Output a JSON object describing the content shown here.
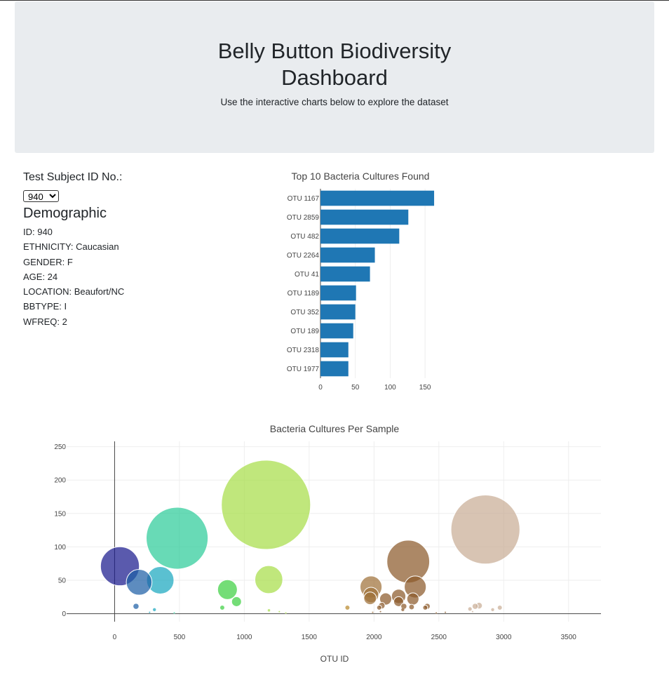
{
  "header": {
    "title": "Belly Button Biodiversity Dashboard",
    "subtitle": "Use the interactive charts below to explore the dataset"
  },
  "selector": {
    "label": "Test Subject ID No.:",
    "selected": "940"
  },
  "demographic": {
    "title": "Demographic",
    "lines": [
      "ID: 940",
      "ETHNICITY: Caucasian",
      "GENDER: F",
      "AGE: 24",
      "LOCATION: Beaufort/NC",
      "BBTYPE: I",
      "WFREQ: 2"
    ]
  },
  "chart_data": [
    {
      "type": "bar",
      "orientation": "horizontal",
      "title": "Top 10 Bacteria Cultures Found",
      "categories": [
        "OTU 1167",
        "OTU 2859",
        "OTU 482",
        "OTU 2264",
        "OTU 41",
        "OTU 1189",
        "OTU 352",
        "OTU 189",
        "OTU 2318",
        "OTU 1977"
      ],
      "values": [
        163,
        126,
        113,
        78,
        71,
        51,
        50,
        47,
        40,
        40
      ],
      "xlim": [
        0,
        172
      ],
      "xticks": [
        0,
        50,
        100,
        150
      ],
      "color": "#1f77b4",
      "grid": true
    },
    {
      "type": "scatter",
      "title": "Bacteria Cultures Per Sample",
      "xlabel": "OTU ID",
      "ylabel": "",
      "xlim": [
        -370,
        3750
      ],
      "ylim": [
        -12,
        258
      ],
      "xticks": [
        0,
        500,
        1000,
        1500,
        2000,
        2500,
        3000,
        3500
      ],
      "yticks": [
        0,
        50,
        100,
        150,
        200,
        250
      ],
      "grid": true,
      "points": [
        {
          "x": 41,
          "y": 71,
          "c": "#1a1a8e"
        },
        {
          "x": 189,
          "y": 47,
          "c": "#1f5fa6"
        },
        {
          "x": 352,
          "y": 50,
          "c": "#1aa8bf"
        },
        {
          "x": 482,
          "y": 113,
          "c": "#2ecc9a"
        },
        {
          "x": 1167,
          "y": 163,
          "c": "#a8de4a"
        },
        {
          "x": 2859,
          "y": 126,
          "c": "#c9ad96"
        },
        {
          "x": 2264,
          "y": 78,
          "c": "#8c5a2b"
        },
        {
          "x": 1189,
          "y": 51,
          "c": "#a8de4a"
        },
        {
          "x": 2318,
          "y": 40,
          "c": "#8c5a2b"
        },
        {
          "x": 1977,
          "y": 40,
          "c": "#a0723a"
        },
        {
          "x": 870,
          "y": 36,
          "c": "#3fd042"
        },
        {
          "x": 940,
          "y": 18,
          "c": "#3fd042"
        },
        {
          "x": 1977,
          "y": 28,
          "c": "#a0723a"
        },
        {
          "x": 1970,
          "y": 23,
          "c": "#a0723a"
        },
        {
          "x": 2090,
          "y": 22,
          "c": "#8c5a2b"
        },
        {
          "x": 2190,
          "y": 26,
          "c": "#8c5a2b"
        },
        {
          "x": 2300,
          "y": 22,
          "c": "#8c5a2b"
        },
        {
          "x": 2190,
          "y": 18,
          "c": "#8c5a2b"
        },
        {
          "x": 2060,
          "y": 12,
          "c": "#8c5a2b"
        },
        {
          "x": 2040,
          "y": 9,
          "c": "#8c5a2b"
        },
        {
          "x": 2230,
          "y": 11,
          "c": "#8c5a2b"
        },
        {
          "x": 2290,
          "y": 10,
          "c": "#8c5a2b"
        },
        {
          "x": 2395,
          "y": 9,
          "c": "#8c5a2b"
        },
        {
          "x": 2410,
          "y": 11,
          "c": "#8c5a2b"
        },
        {
          "x": 2222,
          "y": 6,
          "c": "#8c5a2b"
        },
        {
          "x": 1795,
          "y": 9,
          "c": "#b8892e"
        },
        {
          "x": 2780,
          "y": 11,
          "c": "#c9ad96"
        },
        {
          "x": 2810,
          "y": 12,
          "c": "#c9ad96"
        },
        {
          "x": 2740,
          "y": 7,
          "c": "#c9ad96"
        },
        {
          "x": 2970,
          "y": 9,
          "c": "#c9ad96"
        },
        {
          "x": 2915,
          "y": 6,
          "c": "#c9ad96"
        },
        {
          "x": 165,
          "y": 11,
          "c": "#1f5fa6"
        },
        {
          "x": 307,
          "y": 6,
          "c": "#1aa8bf"
        },
        {
          "x": 830,
          "y": 9,
          "c": "#3fd042"
        },
        {
          "x": 1190,
          "y": 5,
          "c": "#a8de4a"
        },
        {
          "x": 1270,
          "y": 3,
          "c": "#a8de4a"
        },
        {
          "x": 2050,
          "y": 3,
          "c": "#8c5a2b"
        },
        {
          "x": 2760,
          "y": 3,
          "c": "#c9ad96"
        },
        {
          "x": 1990,
          "y": 2,
          "c": "#a0723a"
        },
        {
          "x": 2550,
          "y": 2,
          "c": "#8c5a2b"
        },
        {
          "x": 270,
          "y": 2,
          "c": "#1aa8bf"
        },
        {
          "x": 1320,
          "y": 1,
          "c": "#a8de4a"
        },
        {
          "x": 460,
          "y": 1,
          "c": "#2ecc9a"
        },
        {
          "x": 2480,
          "y": 1,
          "c": "#8c5a2b"
        }
      ]
    }
  ]
}
